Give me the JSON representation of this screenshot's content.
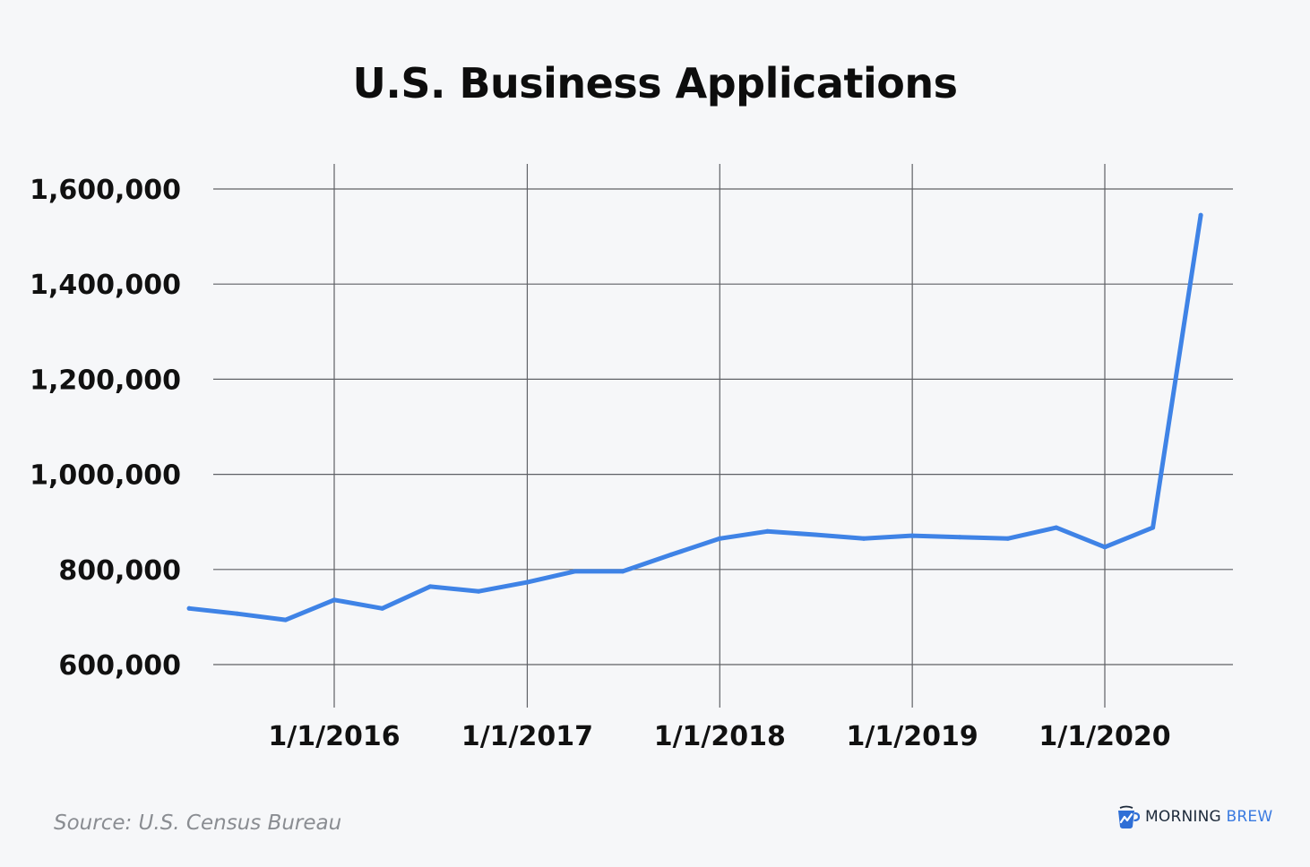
{
  "source": "Source: U.S. Census Bureau",
  "brand": {
    "word1": "MORNING",
    "word2": "BREW",
    "icon": "coffee-mug-chart-icon"
  },
  "colors": {
    "line": "#3f83e6",
    "grid": "#5f6166",
    "background": "#f6f7f9"
  },
  "chart_data": {
    "type": "line",
    "title": "U.S. Business Applications",
    "xlabel": "",
    "ylabel": "",
    "grid": true,
    "legend": "none",
    "ylim": [
      600000,
      1600000
    ],
    "y_ticks": [
      {
        "value": 600000,
        "label": "600,000"
      },
      {
        "value": 800000,
        "label": "800,000"
      },
      {
        "value": 1000000,
        "label": "1,000,000"
      },
      {
        "value": 1200000,
        "label": "1,200,000"
      },
      {
        "value": 1400000,
        "label": "1,400,000"
      },
      {
        "value": 1600000,
        "label": "1,600,000"
      }
    ],
    "x_ticks": [
      {
        "value": "2016-01-01",
        "label": "1/1/2016"
      },
      {
        "value": "2017-01-01",
        "label": "1/1/2017"
      },
      {
        "value": "2018-01-01",
        "label": "1/1/2018"
      },
      {
        "value": "2019-01-01",
        "label": "1/1/2019"
      },
      {
        "value": "2020-01-01",
        "label": "1/1/2020"
      }
    ],
    "series": [
      {
        "points": [
          {
            "x": "2015-04-01",
            "y": 718000
          },
          {
            "x": "2015-07-01",
            "y": 707000
          },
          {
            "x": "2015-10-01",
            "y": 694000
          },
          {
            "x": "2016-01-01",
            "y": 736000
          },
          {
            "x": "2016-04-01",
            "y": 718000
          },
          {
            "x": "2016-07-01",
            "y": 764000
          },
          {
            "x": "2016-10-01",
            "y": 754000
          },
          {
            "x": "2017-01-01",
            "y": 773000
          },
          {
            "x": "2017-04-01",
            "y": 796000
          },
          {
            "x": "2017-07-01",
            "y": 796000
          },
          {
            "x": "2017-10-01",
            "y": 831000
          },
          {
            "x": "2018-01-01",
            "y": 865000
          },
          {
            "x": "2018-04-01",
            "y": 880000
          },
          {
            "x": "2018-07-01",
            "y": 873000
          },
          {
            "x": "2018-10-01",
            "y": 865000
          },
          {
            "x": "2019-01-01",
            "y": 871000
          },
          {
            "x": "2019-04-01",
            "y": 868000
          },
          {
            "x": "2019-07-01",
            "y": 865000
          },
          {
            "x": "2019-10-01",
            "y": 888000
          },
          {
            "x": "2020-01-01",
            "y": 847000
          },
          {
            "x": "2020-04-01",
            "y": 888000
          },
          {
            "x": "2020-07-01",
            "y": 1545000
          }
        ]
      }
    ]
  }
}
